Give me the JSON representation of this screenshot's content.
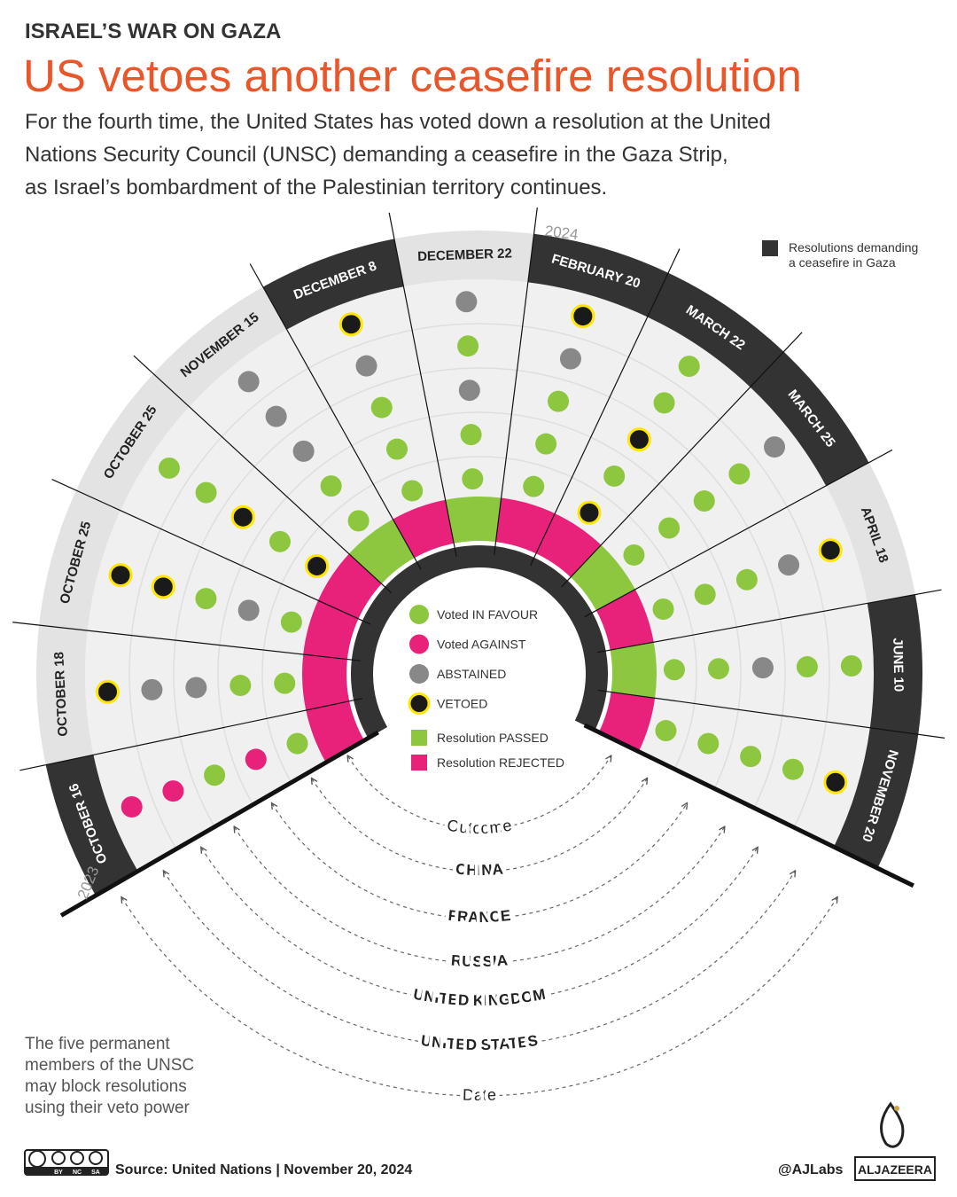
{
  "header": {
    "kicker": "ISRAEL’S WAR ON GAZA",
    "title": "US vetoes another ceasefire resolution",
    "subtitle": [
      "For the fourth time, the United States has voted down a resolution at the United",
      "Nations Security Council (UNSC) demanding a ceasefire in the Gaza Strip,",
      "as Israel’s bombardment of the Palestinian territory continues."
    ]
  },
  "key": {
    "label": [
      "Resolutions demanding",
      "a ceasefire in Gaza"
    ],
    "color": "#333333"
  },
  "years": [
    "2023",
    "2024"
  ],
  "legend": {
    "votes": [
      {
        "label": "Voted IN FAVOUR",
        "color": "#8dc63f"
      },
      {
        "label": "Voted AGAINST",
        "color": "#e8227a"
      },
      {
        "label": "ABSTAINED",
        "color": "#888888"
      },
      {
        "label": "VETOED",
        "color": "#1a1a1a"
      }
    ],
    "veto_ring": "#ffe600",
    "outcomes": [
      {
        "label": "Resolution PASSED",
        "color": "#8dc63f"
      },
      {
        "label": "Resolution REJECTED",
        "color": "#e8227a"
      }
    ]
  },
  "rings": [
    "Outcome",
    "CHINA",
    "FRANCE",
    "RUSSIA",
    "UNITED KINGDOM",
    "UNITED STATES",
    "Date"
  ],
  "resolutions": [
    {
      "date": "OCTOBER 16",
      "band": "#333333",
      "outcome": "#e8227a",
      "votes": [
        "#8dc63f",
        "#e8227a",
        "#8dc63f",
        "#e8227a",
        "#e8227a"
      ]
    },
    {
      "date": "OCTOBER 18",
      "band": "#e3e3e3",
      "outcome": "#e8227a",
      "votes": [
        "#8dc63f",
        "#8dc63f",
        "#888888",
        "#888888",
        "#1a1a1a"
      ]
    },
    {
      "date": "OCTOBER 25",
      "band": "#e3e3e3",
      "outcome": "#e8227a",
      "votes": [
        "#8dc63f",
        "#888888",
        "#8dc63f",
        "#1a1a1a",
        "#1a1a1a"
      ]
    },
    {
      "date": "OCTOBER 25",
      "band": "#e3e3e3",
      "outcome": "#e8227a",
      "votes": [
        "#1a1a1a",
        "#8dc63f",
        "#1a1a1a",
        "#8dc63f",
        "#8dc63f"
      ]
    },
    {
      "date": "NOVEMBER 15",
      "band": "#e3e3e3",
      "outcome": "#8dc63f",
      "votes": [
        "#8dc63f",
        "#8dc63f",
        "#888888",
        "#888888",
        "#888888"
      ]
    },
    {
      "date": "DECEMBER 8",
      "band": "#333333",
      "outcome": "#e8227a",
      "votes": [
        "#8dc63f",
        "#8dc63f",
        "#8dc63f",
        "#888888",
        "#1a1a1a"
      ]
    },
    {
      "date": "DECEMBER 22",
      "band": "#e3e3e3",
      "outcome": "#8dc63f",
      "votes": [
        "#8dc63f",
        "#8dc63f",
        "#888888",
        "#8dc63f",
        "#888888"
      ]
    },
    {
      "date": "FEBRUARY 20",
      "band": "#333333",
      "outcome": "#e8227a",
      "votes": [
        "#8dc63f",
        "#8dc63f",
        "#8dc63f",
        "#888888",
        "#1a1a1a"
      ]
    },
    {
      "date": "MARCH 22",
      "band": "#333333",
      "outcome": "#e8227a",
      "votes": [
        "#1a1a1a",
        "#8dc63f",
        "#1a1a1a",
        "#8dc63f",
        "#8dc63f"
      ]
    },
    {
      "date": "MARCH 25",
      "band": "#333333",
      "outcome": "#8dc63f",
      "votes": [
        "#8dc63f",
        "#8dc63f",
        "#8dc63f",
        "#8dc63f",
        "#888888"
      ]
    },
    {
      "date": "APRIL 18",
      "band": "#e3e3e3",
      "outcome": "#e8227a",
      "votes": [
        "#8dc63f",
        "#8dc63f",
        "#8dc63f",
        "#888888",
        "#1a1a1a"
      ]
    },
    {
      "date": "JUNE 10",
      "band": "#333333",
      "outcome": "#8dc63f",
      "votes": [
        "#8dc63f",
        "#8dc63f",
        "#888888",
        "#8dc63f",
        "#8dc63f"
      ]
    },
    {
      "date": "NOVEMBER 20",
      "band": "#333333",
      "outcome": "#e8227a",
      "votes": [
        "#8dc63f",
        "#8dc63f",
        "#8dc63f",
        "#8dc63f",
        "#1a1a1a"
      ]
    }
  ],
  "note": [
    "The five permanent",
    "members of the UNSC",
    "may block resolutions",
    "using their veto power"
  ],
  "footer": {
    "cc": [
      "BY",
      "NC",
      "SA"
    ],
    "source": "Source: United Nations | November 20, 2024",
    "handle": "@AJLabs",
    "logo": "ALJAZEERA"
  }
}
